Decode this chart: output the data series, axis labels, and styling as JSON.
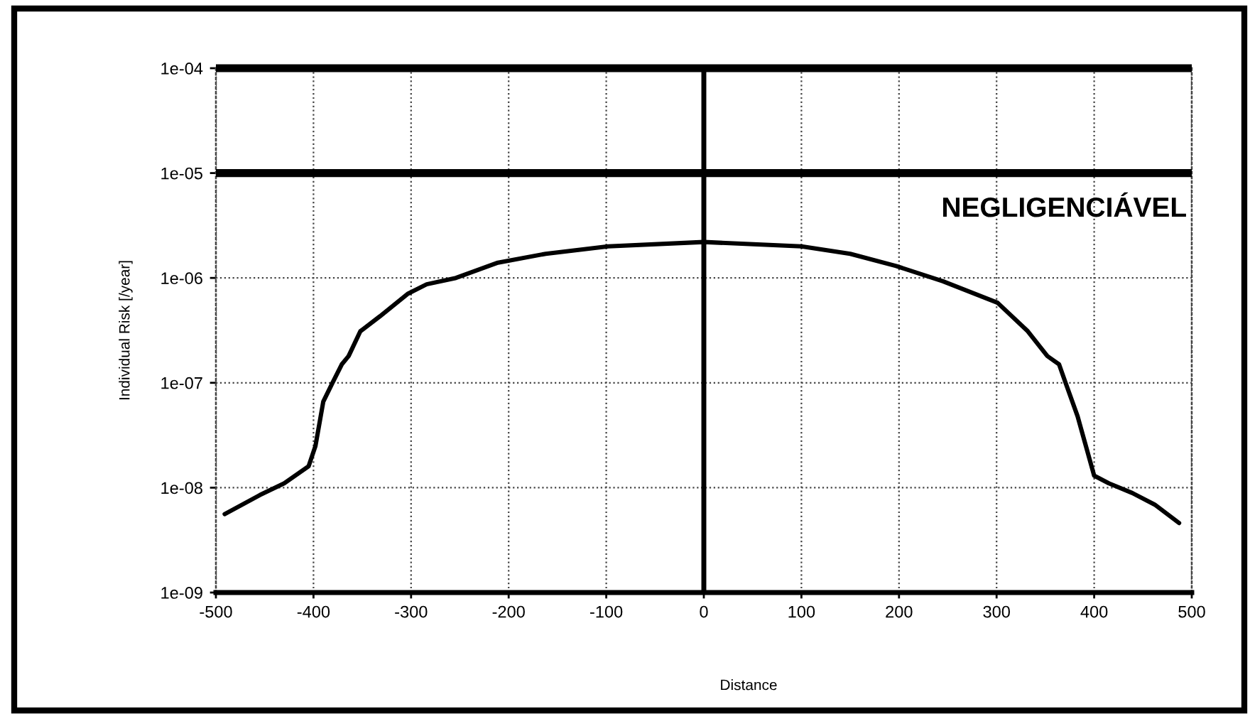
{
  "chart_data": {
    "type": "line",
    "xlabel": "Distance",
    "ylabel": "Individual Risk [/year]",
    "x": [
      -491,
      -455,
      -430,
      -405,
      -398,
      -390,
      -381,
      -371,
      -364,
      -352,
      -332,
      -303,
      -284,
      -254,
      -211,
      -162,
      -98,
      0,
      100,
      150,
      197,
      245,
      301,
      332,
      352,
      364,
      371,
      383,
      390,
      400,
      415,
      439,
      462,
      487
    ],
    "values": [
      5.6e-09,
      8.5e-09,
      1.1e-08,
      1.6e-08,
      2.5e-08,
      6.6e-08,
      9.8e-08,
      1.5e-07,
      1.8e-07,
      3.1e-07,
      4.3e-07,
      7.1e-07,
      8.7e-07,
      1e-06,
      1.4e-06,
      1.7e-06,
      2e-06,
      2.2e-06,
      2e-06,
      1.7e-06,
      1.3e-06,
      9.3e-07,
      5.8e-07,
      3.1e-07,
      1.8e-07,
      1.5e-07,
      9.8e-08,
      4.8e-08,
      2.8e-08,
      1.3e-08,
      1.1e-08,
      8.9e-09,
      6.9e-09,
      4.6e-09
    ],
    "color": "#000000",
    "line_style": "solid",
    "log": true,
    "grid": true,
    "xlim": [
      -500,
      500
    ],
    "xticks": [
      -500,
      -400,
      -300,
      -200,
      -100,
      0,
      100,
      200,
      300,
      400,
      500
    ],
    "ylim": [
      1e-09,
      0.0001
    ],
    "yticks": [
      {
        "value": 1e-09,
        "label": "1e-09"
      },
      {
        "value": 1e-08,
        "label": "1e-08"
      },
      {
        "value": 1e-07,
        "label": "1e-07"
      },
      {
        "value": 1e-06,
        "label": "1e-06"
      },
      {
        "value": 1e-05,
        "label": "1e-05"
      },
      {
        "value": 0.0001,
        "label": "1e-04"
      }
    ],
    "ref_lines": [
      {
        "axis": "y",
        "value": 0.0001,
        "color": "#000000"
      },
      {
        "axis": "y",
        "value": 1e-05,
        "label": "NEGLIGENCIÁVEL",
        "color": "#000000"
      },
      {
        "axis": "x",
        "value": 0,
        "color": "#000000"
      }
    ]
  }
}
